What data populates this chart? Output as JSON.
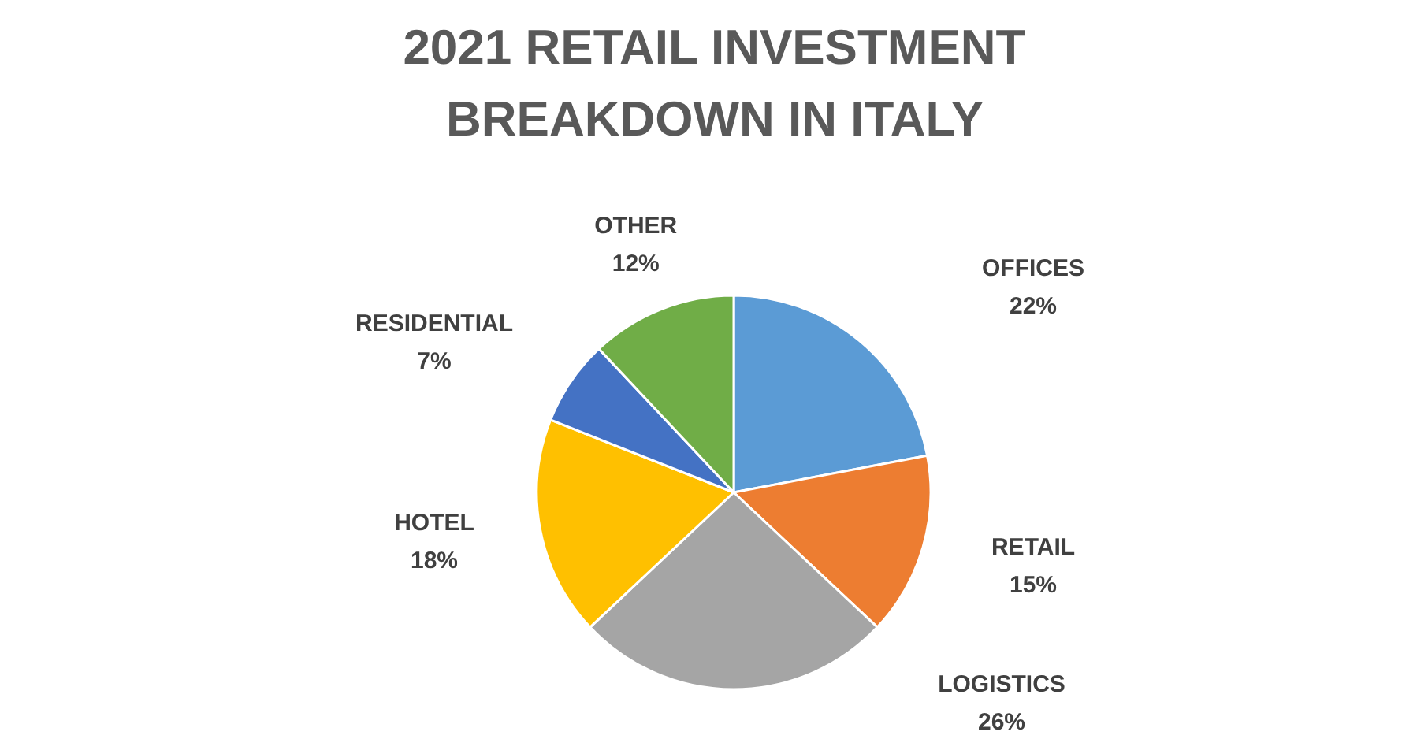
{
  "chart_data": {
    "type": "pie",
    "title": "2021 RETAIL INVESTMENT\nBREAKDOWN IN ITALY",
    "categories": [
      "OFFICES",
      "RETAIL",
      "LOGISTICS",
      "HOTEL",
      "RESIDENTIAL",
      "OTHER"
    ],
    "values": [
      22,
      15,
      26,
      18,
      7,
      12
    ],
    "value_labels": [
      "22%",
      "15%",
      "26%",
      "18%",
      "7%",
      "12%"
    ],
    "colors": [
      "#5b9bd5",
      "#ed7d31",
      "#a5a5a5",
      "#ffc000",
      "#4472c4",
      "#70ad47"
    ]
  }
}
